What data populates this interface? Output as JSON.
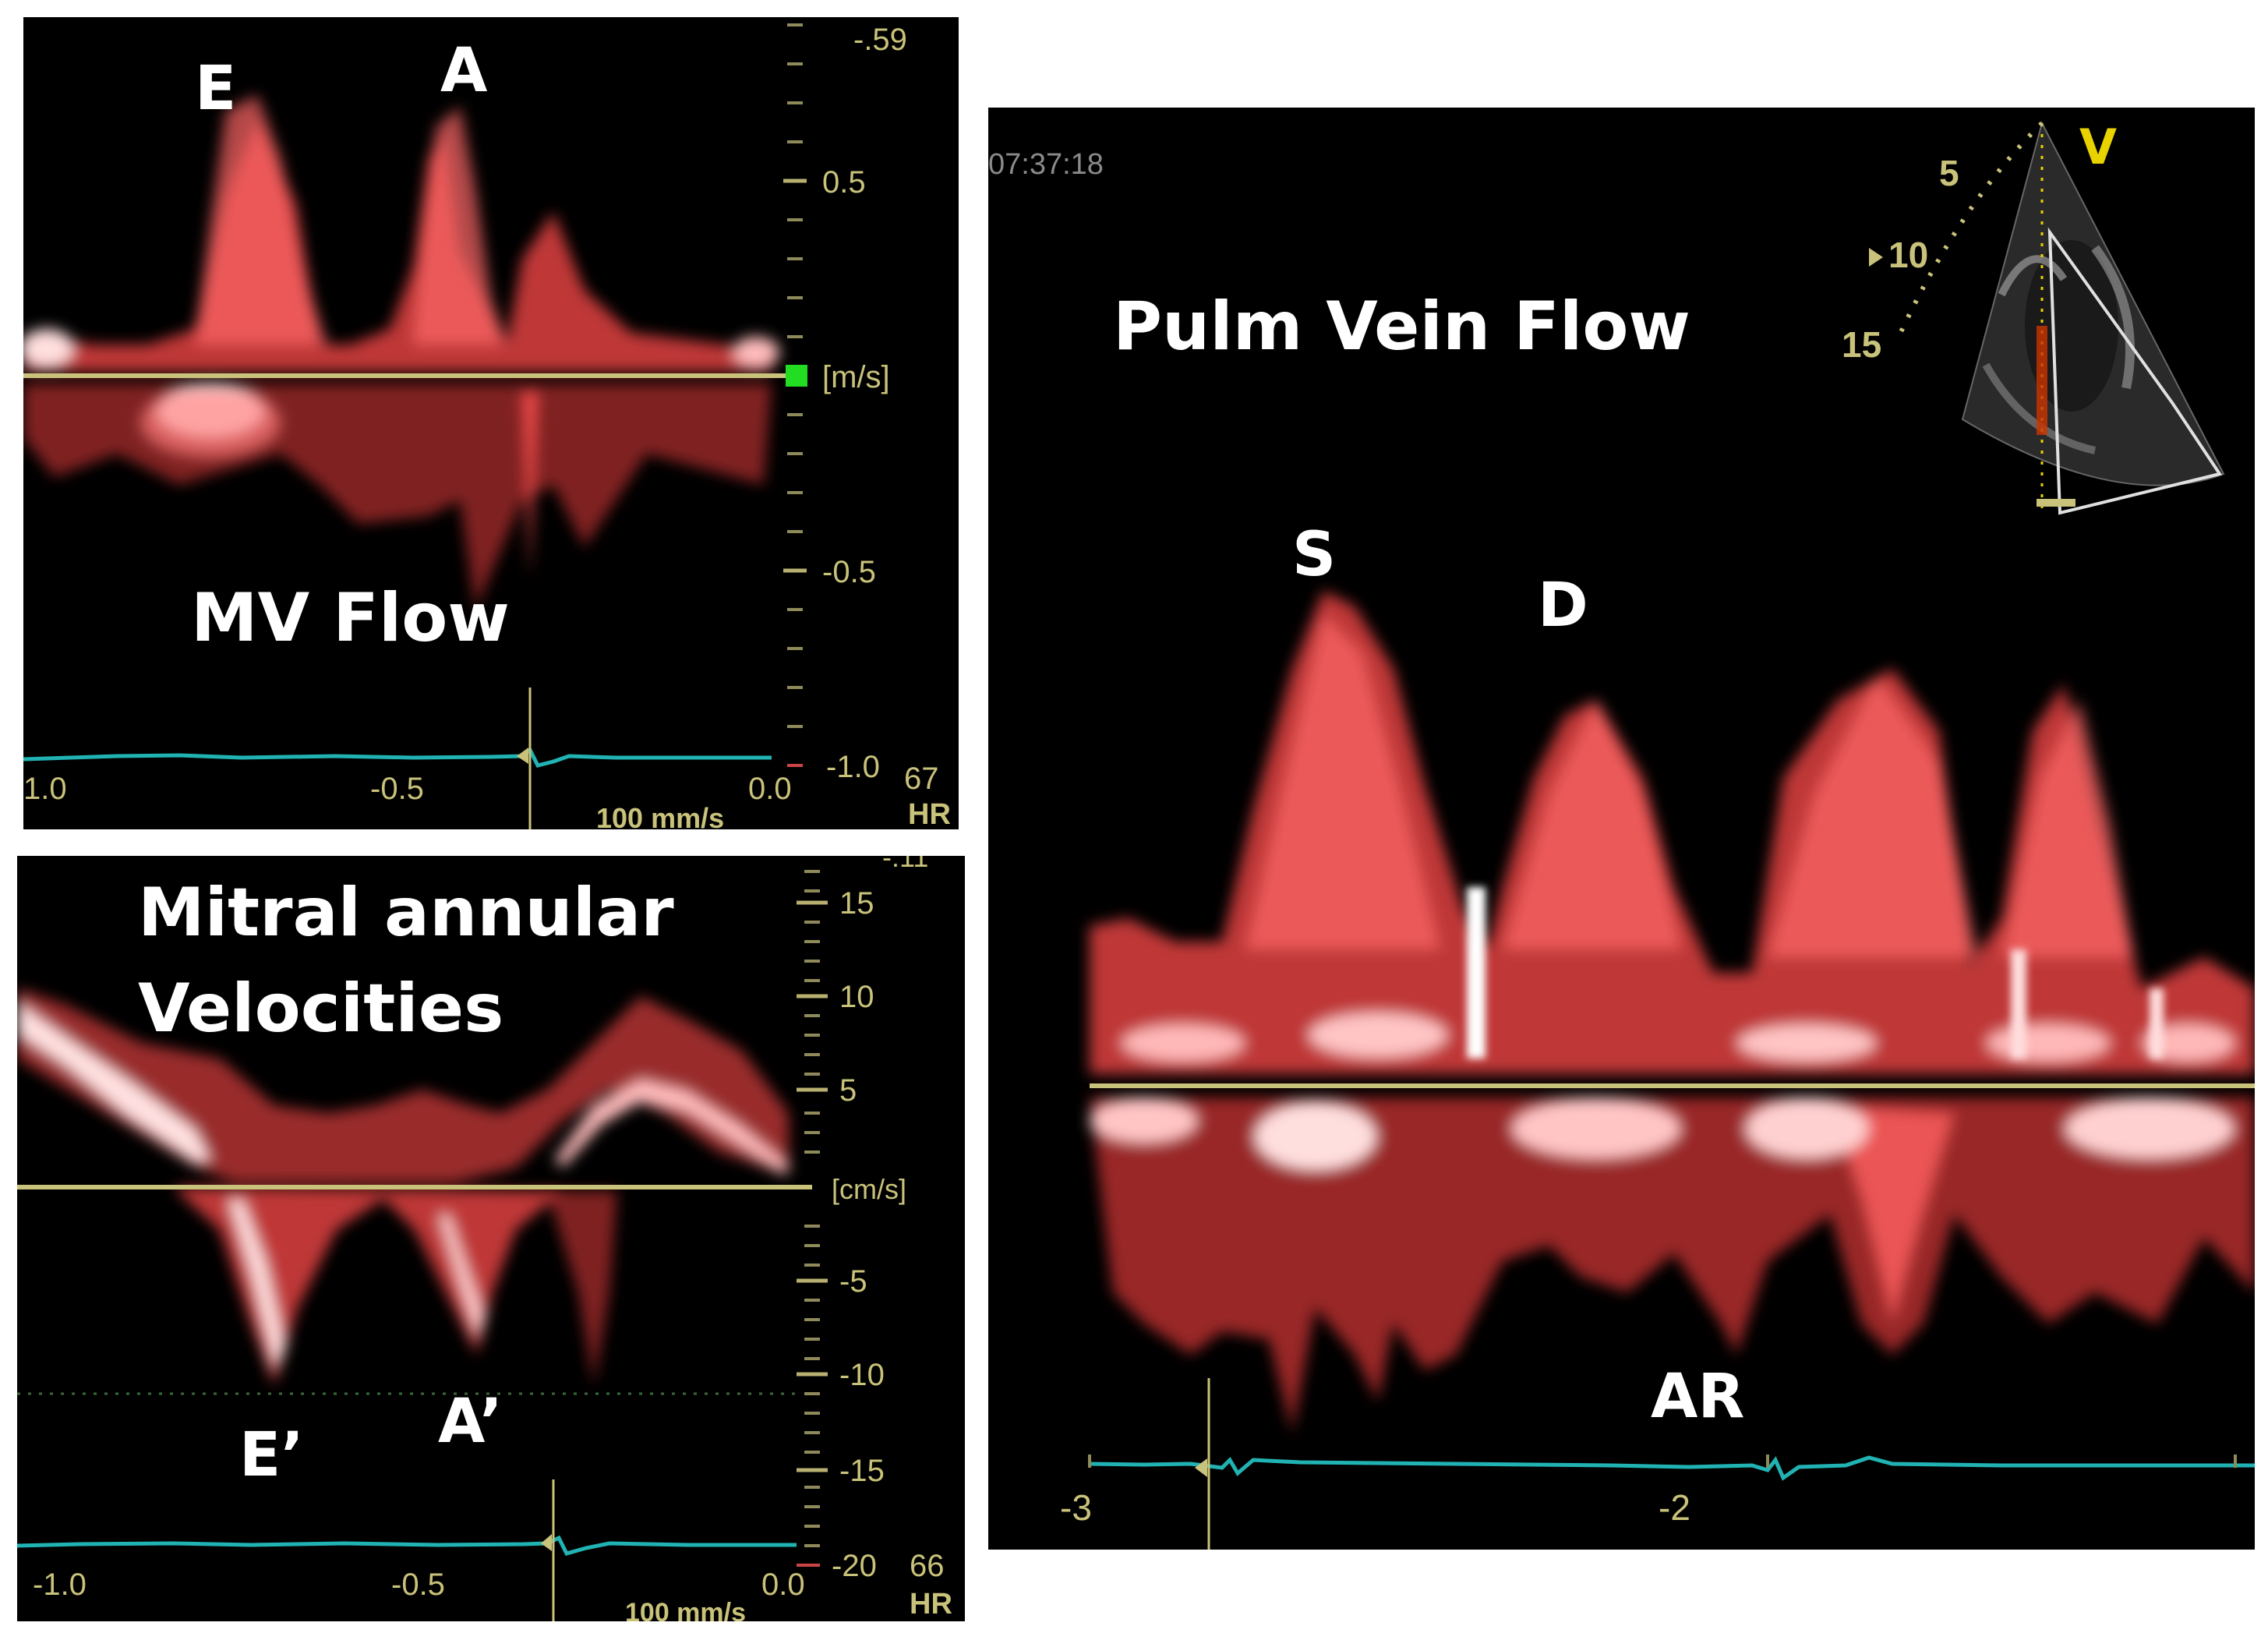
{
  "colors": {
    "doppler_red": "#ff4a4a",
    "baseline": "#c9c27a",
    "ecg": "#21b3b3",
    "scale_text": "#c9c27a",
    "label_text": "#ffffff",
    "sector_yellow": "#e8d200"
  },
  "mv_panel": {
    "title": "MV Flow",
    "peaks": {
      "e": "E",
      "a": "A"
    },
    "scale_top": "-.59",
    "scale_labels": [
      "0.5",
      "[m/s]",
      "-0.5",
      "-1.0"
    ],
    "time_labels": [
      "1.0",
      "-0.5",
      "0.0"
    ],
    "sweep_speed": "100 mm/s",
    "hr_value": "67",
    "hr_label": "HR",
    "marker_icon": "green-square-icon"
  },
  "tdi_panel": {
    "title_line1": "Mitral annular",
    "title_line2": "Velocities",
    "peaks": {
      "e_prime": "E’",
      "a_prime": "A’"
    },
    "scale_top": "-.11",
    "scale_labels": [
      "15",
      "10",
      "5",
      "[cm/s]",
      "-5",
      "-10",
      "-15",
      "-20"
    ],
    "time_labels": [
      "-1.0",
      "-0.5",
      "0.0"
    ],
    "sweep_speed": "100 mm/s",
    "hr_value": "66",
    "hr_label": "HR"
  },
  "pv_panel": {
    "title": "Pulm Vein Flow",
    "timestamp": "07:37:18",
    "peaks": {
      "s": "S",
      "d": "D",
      "ar": "AR"
    },
    "depth_labels": [
      "5",
      "10",
      "15"
    ],
    "view_label": "V",
    "time_labels": [
      "-3",
      "-2"
    ]
  }
}
